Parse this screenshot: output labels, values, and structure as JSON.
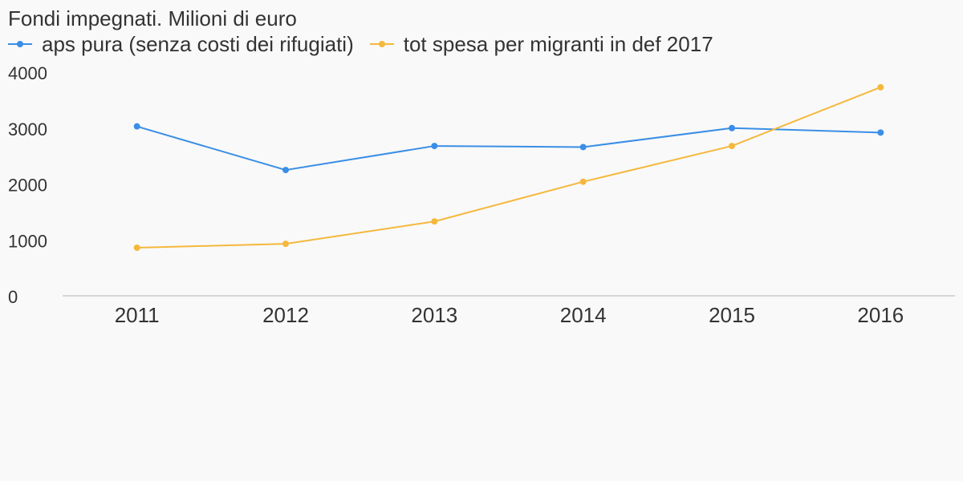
{
  "chart_data": {
    "type": "line",
    "title": "Fondi impegnati. Milioni di euro",
    "categories": [
      "2011",
      "2012",
      "2013",
      "2014",
      "2015",
      "2016"
    ],
    "series": [
      {
        "name": "aps pura (senza costi dei rifugiati)",
        "color": "#3a8ee6",
        "values": [
          3030,
          2250,
          2680,
          2660,
          3000,
          2920
        ]
      },
      {
        "name": "tot spesa per migranti in def 2017",
        "color": "#f5b83d",
        "values": [
          860,
          930,
          1330,
          2040,
          2680,
          3730
        ]
      }
    ],
    "yticks": [
      "0",
      "1000",
      "2000",
      "3000",
      "4000"
    ],
    "ylim": [
      0,
      4000
    ],
    "legend_position": "top-left",
    "grid": false
  }
}
